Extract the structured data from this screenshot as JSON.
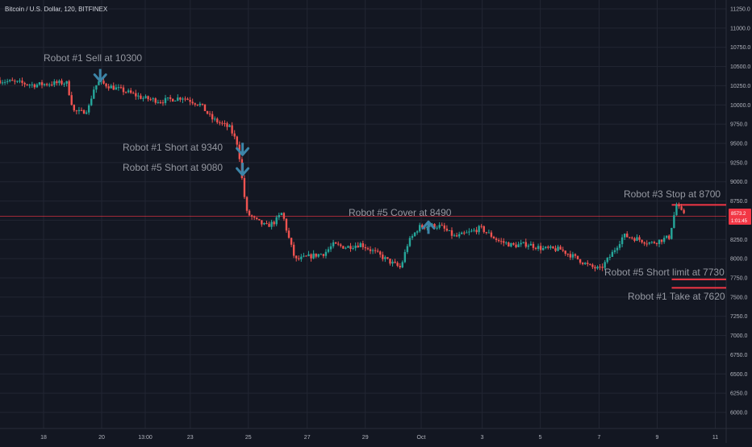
{
  "header": {
    "symbol_title": "Bitcoin / U.S. Dollar, 120, BITFINEX"
  },
  "colors": {
    "background": "#131722",
    "grid": "#222633",
    "up": "#26a69a",
    "down": "#ef5350",
    "annotation_text": "#9598a1",
    "arrow": "#3d85a8",
    "line": "#f23645",
    "axis_text": "#b2b5be"
  },
  "chart_data": {
    "type": "candlestick",
    "ylim": [
      5850,
      11400
    ],
    "y_ticks": [
      11250,
      11000,
      10750,
      10500,
      10250,
      10000,
      9750,
      9500,
      9250,
      9000,
      8750,
      8500,
      8250,
      8000,
      7750,
      7500,
      7250,
      7000,
      6750,
      6500,
      6250,
      6000
    ],
    "y_tick_labels": [
      "11250.0",
      "11000.0",
      "10750.0",
      "10500.0",
      "10250.0",
      "10000.0",
      "9750.0",
      "9500.0",
      "9250.0",
      "9000.0",
      "8750.0",
      "8500.0",
      "8250.0",
      "8000.0",
      "7750.0",
      "7500.0",
      "7250.0",
      "7000.0",
      "6750.0",
      "6500.0",
      "6250.0",
      "6000.0"
    ],
    "x_ticks": [
      {
        "label": "18",
        "pos": 0.06
      },
      {
        "label": "20",
        "pos": 0.14
      },
      {
        "label": "13:00",
        "pos": 0.2
      },
      {
        "label": "23",
        "pos": 0.262
      },
      {
        "label": "25",
        "pos": 0.342
      },
      {
        "label": "27",
        "pos": 0.423
      },
      {
        "label": "29",
        "pos": 0.503
      },
      {
        "label": "Oct",
        "pos": 0.58
      },
      {
        "label": "3",
        "pos": 0.664
      },
      {
        "label": "5",
        "pos": 0.744
      },
      {
        "label": "7",
        "pos": 0.825
      },
      {
        "label": "9",
        "pos": 0.905
      },
      {
        "label": "11",
        "pos": 0.985
      }
    ],
    "price_path": [
      [
        0.0,
        10320
      ],
      [
        0.02,
        10300
      ],
      [
        0.05,
        10260
      ],
      [
        0.075,
        10280
      ],
      [
        0.095,
        10290
      ],
      [
        0.105,
        9920
      ],
      [
        0.115,
        9900
      ],
      [
        0.125,
        9950
      ],
      [
        0.132,
        10200
      ],
      [
        0.139,
        10300
      ],
      [
        0.155,
        10240
      ],
      [
        0.175,
        10180
      ],
      [
        0.2,
        10090
      ],
      [
        0.225,
        10050
      ],
      [
        0.255,
        10100
      ],
      [
        0.28,
        10000
      ],
      [
        0.295,
        9820
      ],
      [
        0.32,
        9700
      ],
      [
        0.33,
        9500
      ],
      [
        0.333,
        9340
      ],
      [
        0.336,
        9080
      ],
      [
        0.343,
        8600
      ],
      [
        0.355,
        8500
      ],
      [
        0.37,
        8420
      ],
      [
        0.382,
        8480
      ],
      [
        0.392,
        8600
      ],
      [
        0.4,
        8300
      ],
      [
        0.41,
        7980
      ],
      [
        0.43,
        8030
      ],
      [
        0.45,
        8070
      ],
      [
        0.462,
        8180
      ],
      [
        0.48,
        8150
      ],
      [
        0.5,
        8190
      ],
      [
        0.52,
        8080
      ],
      [
        0.54,
        7960
      ],
      [
        0.555,
        7880
      ],
      [
        0.565,
        8200
      ],
      [
        0.58,
        8410
      ],
      [
        0.595,
        8430
      ],
      [
        0.61,
        8420
      ],
      [
        0.63,
        8280
      ],
      [
        0.65,
        8340
      ],
      [
        0.665,
        8400
      ],
      [
        0.69,
        8230
      ],
      [
        0.71,
        8170
      ],
      [
        0.73,
        8190
      ],
      [
        0.75,
        8130
      ],
      [
        0.775,
        8120
      ],
      [
        0.8,
        7990
      ],
      [
        0.815,
        7900
      ],
      [
        0.83,
        7860
      ],
      [
        0.845,
        8050
      ],
      [
        0.862,
        8300
      ],
      [
        0.88,
        8260
      ],
      [
        0.9,
        8200
      ],
      [
        0.925,
        8280
      ],
      [
        0.93,
        8500
      ],
      [
        0.935,
        8700
      ],
      [
        0.942,
        8600
      ]
    ],
    "horizontal_lines": [
      {
        "price": 8550,
        "x_start": 0.0,
        "style": "thin"
      },
      {
        "price": 8700,
        "x_start": 0.925,
        "style": "thick"
      },
      {
        "price": 7730,
        "x_start": 0.925,
        "style": "thick"
      },
      {
        "price": 7620,
        "x_start": 0.925,
        "style": "thick"
      }
    ],
    "arrows": [
      {
        "direction": "down",
        "x": 0.138,
        "price": 10300
      },
      {
        "direction": "down",
        "x": 0.334,
        "price": 9340
      },
      {
        "direction": "down",
        "x": 0.334,
        "price": 9080
      },
      {
        "direction": "up",
        "x": 0.59,
        "price": 8490
      }
    ],
    "annotations": [
      "Robot #1 Sell at 10300",
      "Robot #1 Short at 9340",
      "Robot #5 Short at 9080",
      "Robot #5 Cover at 8490",
      "Robot #3 Stop at 8700",
      "Robot #5 Short limit at 7730",
      "Robot #1 Take at 7620"
    ],
    "price_badge": {
      "line1": "8573.2",
      "line2": "1:01:45"
    }
  }
}
